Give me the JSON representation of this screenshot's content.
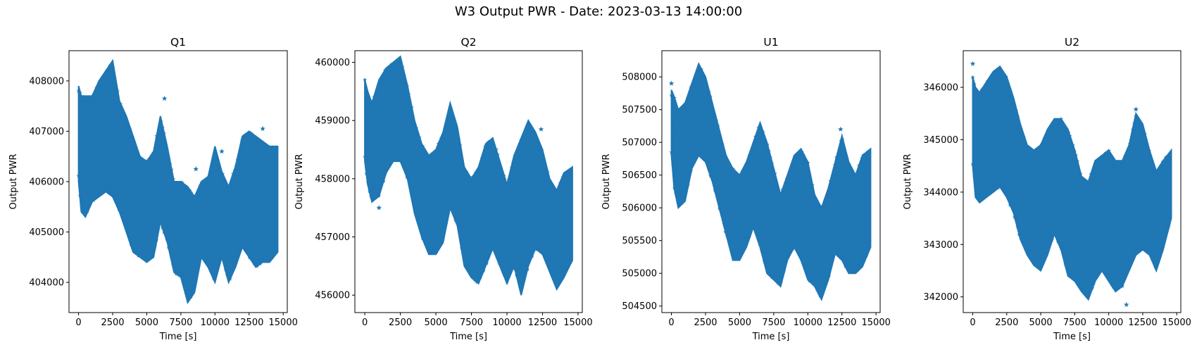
{
  "figure": {
    "suptitle": "W3 Output PWR - Date: 2023-03-13 14:00:00"
  },
  "colors": {
    "series": "#1f77b4",
    "axes": "#000000",
    "background": "#ffffff"
  },
  "chart_data": [
    {
      "type": "scatter",
      "marker": "star",
      "title": "Q1",
      "xlabel": "Time [s]",
      "ylabel": "Output PWR",
      "xlim": [
        -700,
        15300
      ],
      "ylim": [
        403400,
        408600
      ],
      "xticks": [
        0,
        2500,
        5000,
        7500,
        10000,
        12500,
        15000
      ],
      "yticks": [
        404000,
        405000,
        406000,
        407000,
        408000
      ],
      "series": [
        {
          "upper_envelope": {
            "x": [
              0,
              200,
              500,
              1000,
              1500,
              2000,
              2500,
              3000,
              3500,
              4000,
              4500,
              5000,
              5500,
              6000,
              6500,
              7000,
              7500,
              8000,
              8500,
              9000,
              9500,
              10000,
              10500,
              11000,
              11500,
              12000,
              12500,
              13000,
              13500,
              14000,
              14600
            ],
            "y": [
              407900,
              407700,
              407700,
              407700,
              408000,
              408200,
              408400,
              407600,
              407300,
              406900,
              406500,
              406400,
              406600,
              407300,
              406700,
              406000,
              406000,
              405900,
              405700,
              406000,
              406100,
              406700,
              406200,
              405900,
              406300,
              406900,
              407000,
              406900,
              406800,
              406700,
              406700
            ]
          },
          "lower_envelope": {
            "x": [
              0,
              200,
              500,
              1000,
              1500,
              2000,
              2500,
              3000,
              3500,
              4000,
              4500,
              5000,
              5500,
              6000,
              6500,
              7000,
              7500,
              8000,
              8500,
              9000,
              9500,
              10000,
              10500,
              11000,
              11500,
              12000,
              12500,
              13000,
              13500,
              14000,
              14600
            ],
            "y": [
              406000,
              405400,
              405300,
              405600,
              405700,
              405800,
              405700,
              405400,
              405000,
              404600,
              404500,
              404400,
              404500,
              405200,
              404800,
              404200,
              404100,
              403600,
              403800,
              404500,
              404300,
              404000,
              404500,
              404000,
              404300,
              404700,
              404500,
              404300,
              404400,
              404400,
              404600
            ]
          },
          "outliers": [
            [
              6300,
              407650
            ],
            [
              8600,
              406250
            ],
            [
              10500,
              406600
            ],
            [
              13500,
              407050
            ]
          ]
        }
      ]
    },
    {
      "type": "scatter",
      "marker": "star",
      "title": "Q2",
      "xlabel": "Time [s]",
      "ylabel": "Output PWR",
      "xlim": [
        -700,
        15300
      ],
      "ylim": [
        455700,
        460200
      ],
      "xticks": [
        0,
        2500,
        5000,
        7500,
        10000,
        12500,
        15000
      ],
      "yticks": [
        456000,
        457000,
        458000,
        459000,
        460000
      ],
      "series": [
        {
          "upper_envelope": {
            "x": [
              0,
              200,
              500,
              1000,
              1500,
              2000,
              2500,
              3000,
              3500,
              4000,
              4500,
              5000,
              5500,
              6000,
              6500,
              7000,
              7500,
              8000,
              8500,
              9000,
              9500,
              10000,
              10500,
              11000,
              11500,
              12000,
              12500,
              13000,
              13500,
              14000,
              14600
            ],
            "y": [
              459700,
              459500,
              459300,
              459700,
              459900,
              460000,
              460100,
              459600,
              459000,
              458600,
              458400,
              458500,
              458800,
              459300,
              458900,
              458200,
              458000,
              458200,
              458600,
              458700,
              458300,
              457900,
              458400,
              458700,
              459000,
              458800,
              458500,
              458000,
              457800,
              458100,
              458200
            ]
          },
          "lower_envelope": {
            "x": [
              0,
              200,
              500,
              1000,
              1500,
              2000,
              2500,
              3000,
              3500,
              4000,
              4500,
              5000,
              5500,
              6000,
              6500,
              7000,
              7500,
              8000,
              8500,
              9000,
              9500,
              10000,
              10500,
              11000,
              11500,
              12000,
              12500,
              13000,
              13500,
              14000,
              14600
            ],
            "y": [
              458300,
              457900,
              457600,
              457700,
              458100,
              458300,
              458300,
              458000,
              457400,
              457000,
              456700,
              456700,
              456900,
              457500,
              457200,
              456500,
              456300,
              456200,
              456500,
              456800,
              456500,
              456200,
              456500,
              456000,
              456500,
              456800,
              456700,
              456400,
              456100,
              456300,
              456600
            ]
          },
          "outliers": [
            [
              12400,
              458850
            ],
            [
              9200,
              458500
            ],
            [
              1000,
              457500
            ]
          ]
        }
      ]
    },
    {
      "type": "scatter",
      "marker": "star",
      "title": "U1",
      "xlabel": "Time [s]",
      "ylabel": "Output PWR",
      "xlim": [
        -700,
        15300
      ],
      "ylim": [
        504400,
        508400
      ],
      "xticks": [
        0,
        2500,
        5000,
        7500,
        10000,
        12500,
        15000
      ],
      "yticks": [
        504500,
        505000,
        505500,
        506000,
        506500,
        507000,
        507500,
        508000
      ],
      "series": [
        {
          "upper_envelope": {
            "x": [
              0,
              200,
              500,
              1000,
              1500,
              2000,
              2500,
              3000,
              3500,
              4000,
              4500,
              5000,
              5500,
              6000,
              6500,
              7000,
              7500,
              8000,
              8500,
              9000,
              9500,
              10000,
              10500,
              11000,
              11500,
              12000,
              12500,
              13000,
              13500,
              14000,
              14600
            ],
            "y": [
              507800,
              507700,
              507500,
              507600,
              507900,
              508200,
              508000,
              507600,
              507200,
              506800,
              506600,
              506500,
              506700,
              507000,
              507300,
              507000,
              506600,
              506200,
              506500,
              506800,
              506900,
              506700,
              506200,
              506000,
              506300,
              506700,
              507100,
              506700,
              506500,
              506800,
              506900
            ]
          },
          "lower_envelope": {
            "x": [
              0,
              200,
              500,
              1000,
              1500,
              2000,
              2500,
              3000,
              3500,
              4000,
              4500,
              5000,
              5500,
              6000,
              6500,
              7000,
              7500,
              8000,
              8500,
              9000,
              9500,
              10000,
              10500,
              11000,
              11500,
              12000,
              12500,
              13000,
              13500,
              14000,
              14600
            ],
            "y": [
              506800,
              506300,
              506000,
              506100,
              506600,
              506800,
              506700,
              506400,
              506000,
              505600,
              505200,
              505200,
              505400,
              505700,
              505400,
              505000,
              504900,
              504800,
              505200,
              505400,
              505200,
              504900,
              504800,
              504600,
              504900,
              505300,
              505200,
              505000,
              505000,
              505100,
              505400
            ]
          },
          "outliers": [
            [
              0,
              507900
            ],
            [
              12400,
              507200
            ],
            [
              6800,
              506350
            ]
          ]
        }
      ]
    },
    {
      "type": "scatter",
      "marker": "star",
      "title": "U2",
      "xlabel": "Time [s]",
      "ylabel": "Output PWR",
      "xlim": [
        -700,
        15300
      ],
      "ylim": [
        341700,
        346700
      ],
      "xticks": [
        0,
        2500,
        5000,
        7500,
        10000,
        12500,
        15000
      ],
      "yticks": [
        342000,
        343000,
        344000,
        345000,
        346000
      ],
      "series": [
        {
          "upper_envelope": {
            "x": [
              0,
              200,
              500,
              1000,
              1500,
              2000,
              2500,
              3000,
              3500,
              4000,
              4500,
              5000,
              5500,
              6000,
              6500,
              7000,
              7500,
              8000,
              8500,
              9000,
              9500,
              10000,
              10500,
              11000,
              11500,
              12000,
              12500,
              13000,
              13500,
              14000,
              14600
            ],
            "y": [
              346200,
              346000,
              345900,
              346100,
              346300,
              346400,
              346200,
              345800,
              345300,
              344900,
              344800,
              344900,
              345200,
              345400,
              345400,
              345200,
              344800,
              344300,
              344200,
              344600,
              344700,
              344800,
              344600,
              344600,
              344900,
              345500,
              345300,
              344800,
              344400,
              344600,
              344800
            ]
          },
          "lower_envelope": {
            "x": [
              0,
              200,
              500,
              1000,
              1500,
              2000,
              2500,
              3000,
              3500,
              4000,
              4500,
              5000,
              5500,
              6000,
              6500,
              7000,
              7500,
              8000,
              8500,
              9000,
              9500,
              10000,
              10500,
              11000,
              11500,
              12000,
              12500,
              13000,
              13500,
              14000,
              14600
            ],
            "y": [
              344500,
              343900,
              343800,
              343900,
              344000,
              344100,
              343900,
              343600,
              343100,
              342800,
              342600,
              342500,
              342800,
              343200,
              342900,
              342400,
              342300,
              342100,
              341950,
              342300,
              342500,
              342300,
              342100,
              342200,
              342500,
              342800,
              342900,
              342800,
              342500,
              342900,
              343500
            ]
          },
          "outliers": [
            [
              0,
              346450
            ],
            [
              2400,
              346200
            ],
            [
              12000,
              345580
            ],
            [
              10900,
              344500
            ],
            [
              11300,
              341850
            ],
            [
              3500,
              345100
            ]
          ]
        }
      ]
    }
  ]
}
